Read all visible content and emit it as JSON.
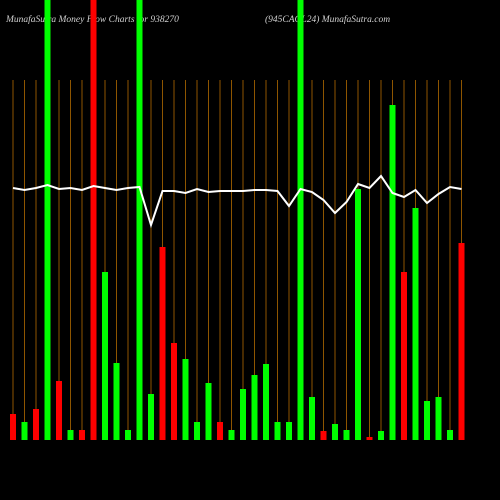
{
  "chart_data": {
    "type": "bar",
    "title": "MunafaSutra  Money Flow  Charts for 938270",
    "subtitle": "(945CAGL24) MunafaSutra.com",
    "categories": [
      null,
      null,
      null,
      null,
      null,
      null,
      null,
      null,
      null,
      null,
      null,
      null,
      null,
      null,
      null,
      null,
      null,
      null,
      null,
      null,
      null,
      null,
      null,
      null,
      null,
      null,
      null,
      null,
      null,
      null,
      null,
      null,
      null,
      null,
      null,
      null,
      null,
      null,
      null,
      null
    ],
    "ylim": [
      0,
      440
    ],
    "grid": true,
    "grid_color": "#b36b00",
    "series": [
      {
        "type": "bar",
        "colors": [
          "#ff0000",
          "#00ff00",
          "#ff0000",
          "#00ff00",
          "#ff0000",
          "#00ff00",
          "#ff0000",
          "#ff0000",
          "#00ff00",
          "#00ff00",
          "#00ff00",
          "#00ff00",
          "#00ff00",
          "#ff0000",
          "#ff0000",
          "#00ff00",
          "#00ff00",
          "#00ff00",
          "#ff0000",
          "#00ff00",
          "#00ff00",
          "#00ff00",
          "#00ff00",
          "#00ff00",
          "#00ff00",
          "#00ff00",
          "#00ff00",
          "#ff0000",
          "#00ff00",
          "#00ff00",
          "#00ff00",
          "#ff0000",
          "#00ff00",
          "#00ff00",
          "#ff0000",
          "#00ff00",
          "#00ff00",
          "#00ff00",
          "#00ff00",
          "#ff0000"
        ],
        "values": [
          26,
          18,
          31,
          440,
          59,
          10,
          10,
          440,
          168,
          77,
          10,
          440,
          46,
          193,
          97,
          81,
          18,
          57,
          18,
          10,
          51,
          65,
          76,
          18,
          18,
          440,
          43,
          9,
          16,
          10,
          251,
          3,
          9,
          335,
          168,
          232,
          39,
          43,
          10,
          197
        ]
      },
      {
        "type": "line",
        "color": "#ffffff",
        "values": [
          252,
          250,
          252,
          255,
          251,
          252,
          250,
          254,
          252,
          250,
          252,
          253,
          215,
          249,
          249,
          247,
          251,
          248,
          249,
          249,
          249,
          250,
          250,
          249,
          234,
          251,
          248,
          240,
          227,
          238,
          256,
          252,
          264,
          247,
          243,
          250,
          237,
          246,
          253,
          251
        ]
      }
    ]
  }
}
